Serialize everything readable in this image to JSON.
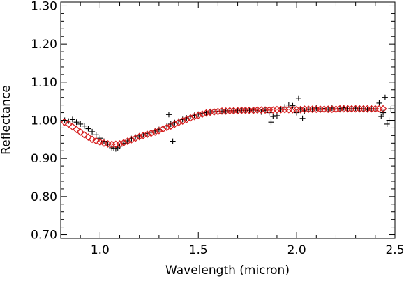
{
  "chart_data": {
    "type": "scatter",
    "title": "",
    "xlabel": "Wavelength (micron)",
    "ylabel": "Reflectance",
    "xlim": [
      0.8,
      2.5
    ],
    "ylim": [
      0.69,
      1.31
    ],
    "xticks": [
      1.0,
      1.5,
      2.0,
      2.5
    ],
    "xtick_labels": [
      "1.0",
      "1.5",
      "2.0",
      "2.5"
    ],
    "yticks": [
      0.7,
      0.8,
      0.9,
      1.0,
      1.1,
      1.2,
      1.3
    ],
    "ytick_labels": [
      "0.70",
      "0.80",
      "0.90",
      "1.00",
      "1.10",
      "1.20",
      "1.30"
    ],
    "grid": false,
    "series": [
      {
        "marker": "plus",
        "color": "#000000",
        "points": [
          [
            0.82,
            1.0
          ],
          [
            0.84,
            0.998
          ],
          [
            0.86,
            1.002
          ],
          [
            0.88,
            0.995
          ],
          [
            0.9,
            0.99
          ],
          [
            0.92,
            0.985
          ],
          [
            0.94,
            0.978
          ],
          [
            0.96,
            0.97
          ],
          [
            0.98,
            0.962
          ],
          [
            1.0,
            0.953
          ],
          [
            1.02,
            0.945
          ],
          [
            1.04,
            0.937
          ],
          [
            1.05,
            0.932
          ],
          [
            1.06,
            0.928
          ],
          [
            1.07,
            0.926
          ],
          [
            1.08,
            0.925
          ],
          [
            1.09,
            0.928
          ],
          [
            1.1,
            0.932
          ],
          [
            1.12,
            0.94
          ],
          [
            1.14,
            0.946
          ],
          [
            1.16,
            0.952
          ],
          [
            1.18,
            0.956
          ],
          [
            1.2,
            0.959
          ],
          [
            1.22,
            0.962
          ],
          [
            1.24,
            0.965
          ],
          [
            1.26,
            0.968
          ],
          [
            1.28,
            0.972
          ],
          [
            1.3,
            0.976
          ],
          [
            1.32,
            0.98
          ],
          [
            1.34,
            0.985
          ],
          [
            1.35,
            1.015
          ],
          [
            1.36,
            0.99
          ],
          [
            1.37,
            0.945
          ],
          [
            1.38,
            0.994
          ],
          [
            1.4,
            0.998
          ],
          [
            1.42,
            1.002
          ],
          [
            1.44,
            1.006
          ],
          [
            1.46,
            1.01
          ],
          [
            1.48,
            1.013
          ],
          [
            1.5,
            1.016
          ],
          [
            1.52,
            1.018
          ],
          [
            1.54,
            1.02
          ],
          [
            1.56,
            1.022
          ],
          [
            1.58,
            1.023
          ],
          [
            1.6,
            1.024
          ],
          [
            1.62,
            1.024
          ],
          [
            1.64,
            1.025
          ],
          [
            1.66,
            1.025
          ],
          [
            1.68,
            1.025
          ],
          [
            1.7,
            1.026
          ],
          [
            1.72,
            1.026
          ],
          [
            1.74,
            1.025
          ],
          [
            1.76,
            1.026
          ],
          [
            1.78,
            1.027
          ],
          [
            1.8,
            1.025
          ],
          [
            1.82,
            1.022
          ],
          [
            1.84,
            1.026
          ],
          [
            1.86,
            1.02
          ],
          [
            1.87,
            0.995
          ],
          [
            1.88,
            1.01
          ],
          [
            1.9,
            1.012
          ],
          [
            1.92,
            1.03
          ],
          [
            1.94,
            1.035
          ],
          [
            1.96,
            1.04
          ],
          [
            1.98,
            1.038
          ],
          [
            2.0,
            1.02
          ],
          [
            2.01,
            1.058
          ],
          [
            2.02,
            1.03
          ],
          [
            2.03,
            1.005
          ],
          [
            2.04,
            1.025
          ],
          [
            2.06,
            1.028
          ],
          [
            2.08,
            1.03
          ],
          [
            2.1,
            1.032
          ],
          [
            2.12,
            1.03
          ],
          [
            2.14,
            1.031
          ],
          [
            2.16,
            1.029
          ],
          [
            2.18,
            1.032
          ],
          [
            2.2,
            1.03
          ],
          [
            2.22,
            1.031
          ],
          [
            2.24,
            1.033
          ],
          [
            2.26,
            1.031
          ],
          [
            2.28,
            1.03
          ],
          [
            2.3,
            1.032
          ],
          [
            2.32,
            1.031
          ],
          [
            2.34,
            1.03
          ],
          [
            2.36,
            1.028
          ],
          [
            2.38,
            1.03
          ],
          [
            2.4,
            1.029
          ],
          [
            2.42,
            1.045
          ],
          [
            2.43,
            1.01
          ],
          [
            2.44,
            1.02
          ],
          [
            2.45,
            1.06
          ],
          [
            2.46,
            0.99
          ],
          [
            2.47,
            1.0
          ],
          [
            2.48,
            1.03
          ]
        ]
      },
      {
        "marker": "diamond",
        "color": "#d62020",
        "points": [
          [
            0.82,
            0.995
          ],
          [
            0.84,
            0.99
          ],
          [
            0.86,
            0.983
          ],
          [
            0.88,
            0.976
          ],
          [
            0.9,
            0.969
          ],
          [
            0.92,
            0.962
          ],
          [
            0.94,
            0.956
          ],
          [
            0.96,
            0.95
          ],
          [
            0.98,
            0.946
          ],
          [
            1.0,
            0.943
          ],
          [
            1.02,
            0.94
          ],
          [
            1.04,
            0.938
          ],
          [
            1.06,
            0.937
          ],
          [
            1.08,
            0.937
          ],
          [
            1.1,
            0.938
          ],
          [
            1.12,
            0.941
          ],
          [
            1.14,
            0.945
          ],
          [
            1.16,
            0.949
          ],
          [
            1.18,
            0.953
          ],
          [
            1.2,
            0.957
          ],
          [
            1.22,
            0.96
          ],
          [
            1.24,
            0.963
          ],
          [
            1.26,
            0.966
          ],
          [
            1.28,
            0.969
          ],
          [
            1.3,
            0.973
          ],
          [
            1.32,
            0.977
          ],
          [
            1.34,
            0.981
          ],
          [
            1.36,
            0.985
          ],
          [
            1.38,
            0.99
          ],
          [
            1.4,
            0.994
          ],
          [
            1.42,
            0.998
          ],
          [
            1.44,
            1.002
          ],
          [
            1.46,
            1.006
          ],
          [
            1.48,
            1.01
          ],
          [
            1.5,
            1.013
          ],
          [
            1.52,
            1.016
          ],
          [
            1.54,
            1.019
          ],
          [
            1.56,
            1.021
          ],
          [
            1.58,
            1.022
          ],
          [
            1.6,
            1.023
          ],
          [
            1.62,
            1.024
          ],
          [
            1.64,
            1.024
          ],
          [
            1.66,
            1.025
          ],
          [
            1.68,
            1.025
          ],
          [
            1.7,
            1.025
          ],
          [
            1.72,
            1.026
          ],
          [
            1.74,
            1.026
          ],
          [
            1.76,
            1.026
          ],
          [
            1.78,
            1.026
          ],
          [
            1.8,
            1.027
          ],
          [
            1.82,
            1.027
          ],
          [
            1.84,
            1.027
          ],
          [
            1.86,
            1.027
          ],
          [
            1.88,
            1.027
          ],
          [
            1.9,
            1.028
          ],
          [
            1.92,
            1.028
          ],
          [
            1.94,
            1.028
          ],
          [
            1.96,
            1.028
          ],
          [
            1.98,
            1.028
          ],
          [
            2.0,
            1.028
          ],
          [
            2.02,
            1.028
          ],
          [
            2.04,
            1.029
          ],
          [
            2.06,
            1.029
          ],
          [
            2.08,
            1.029
          ],
          [
            2.1,
            1.029
          ],
          [
            2.12,
            1.029
          ],
          [
            2.14,
            1.029
          ],
          [
            2.16,
            1.029
          ],
          [
            2.18,
            1.029
          ],
          [
            2.2,
            1.029
          ],
          [
            2.22,
            1.03
          ],
          [
            2.24,
            1.03
          ],
          [
            2.26,
            1.03
          ],
          [
            2.28,
            1.03
          ],
          [
            2.3,
            1.03
          ],
          [
            2.32,
            1.03
          ],
          [
            2.34,
            1.03
          ],
          [
            2.36,
            1.03
          ],
          [
            2.38,
            1.03
          ],
          [
            2.4,
            1.03
          ],
          [
            2.42,
            1.03
          ],
          [
            2.44,
            1.03
          ]
        ]
      }
    ]
  }
}
